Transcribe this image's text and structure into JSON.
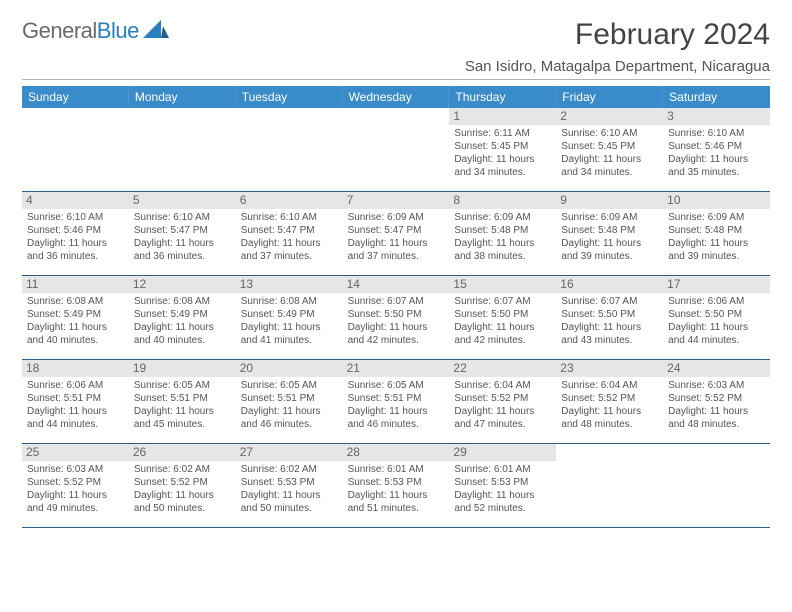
{
  "logo": {
    "general": "General",
    "blue": "Blue"
  },
  "title": "February 2024",
  "location": "San Isidro, Matagalpa Department, Nicaragua",
  "colors": {
    "header_bar": "#3a8bc9",
    "header_text": "#ffffff",
    "day_bg": "#e6e6e6",
    "rule": "#2f5e85",
    "body_text": "#555555"
  },
  "day_names": [
    "Sunday",
    "Monday",
    "Tuesday",
    "Wednesday",
    "Thursday",
    "Friday",
    "Saturday"
  ],
  "leading_blank": 4,
  "days": [
    {
      "n": "1",
      "sr": "6:11 AM",
      "ss": "5:45 PM",
      "dl": "11 hours and 34 minutes."
    },
    {
      "n": "2",
      "sr": "6:10 AM",
      "ss": "5:45 PM",
      "dl": "11 hours and 34 minutes."
    },
    {
      "n": "3",
      "sr": "6:10 AM",
      "ss": "5:46 PM",
      "dl": "11 hours and 35 minutes."
    },
    {
      "n": "4",
      "sr": "6:10 AM",
      "ss": "5:46 PM",
      "dl": "11 hours and 36 minutes."
    },
    {
      "n": "5",
      "sr": "6:10 AM",
      "ss": "5:47 PM",
      "dl": "11 hours and 36 minutes."
    },
    {
      "n": "6",
      "sr": "6:10 AM",
      "ss": "5:47 PM",
      "dl": "11 hours and 37 minutes."
    },
    {
      "n": "7",
      "sr": "6:09 AM",
      "ss": "5:47 PM",
      "dl": "11 hours and 37 minutes."
    },
    {
      "n": "8",
      "sr": "6:09 AM",
      "ss": "5:48 PM",
      "dl": "11 hours and 38 minutes."
    },
    {
      "n": "9",
      "sr": "6:09 AM",
      "ss": "5:48 PM",
      "dl": "11 hours and 39 minutes."
    },
    {
      "n": "10",
      "sr": "6:09 AM",
      "ss": "5:48 PM",
      "dl": "11 hours and 39 minutes."
    },
    {
      "n": "11",
      "sr": "6:08 AM",
      "ss": "5:49 PM",
      "dl": "11 hours and 40 minutes."
    },
    {
      "n": "12",
      "sr": "6:08 AM",
      "ss": "5:49 PM",
      "dl": "11 hours and 40 minutes."
    },
    {
      "n": "13",
      "sr": "6:08 AM",
      "ss": "5:49 PM",
      "dl": "11 hours and 41 minutes."
    },
    {
      "n": "14",
      "sr": "6:07 AM",
      "ss": "5:50 PM",
      "dl": "11 hours and 42 minutes."
    },
    {
      "n": "15",
      "sr": "6:07 AM",
      "ss": "5:50 PM",
      "dl": "11 hours and 42 minutes."
    },
    {
      "n": "16",
      "sr": "6:07 AM",
      "ss": "5:50 PM",
      "dl": "11 hours and 43 minutes."
    },
    {
      "n": "17",
      "sr": "6:06 AM",
      "ss": "5:50 PM",
      "dl": "11 hours and 44 minutes."
    },
    {
      "n": "18",
      "sr": "6:06 AM",
      "ss": "5:51 PM",
      "dl": "11 hours and 44 minutes."
    },
    {
      "n": "19",
      "sr": "6:05 AM",
      "ss": "5:51 PM",
      "dl": "11 hours and 45 minutes."
    },
    {
      "n": "20",
      "sr": "6:05 AM",
      "ss": "5:51 PM",
      "dl": "11 hours and 46 minutes."
    },
    {
      "n": "21",
      "sr": "6:05 AM",
      "ss": "5:51 PM",
      "dl": "11 hours and 46 minutes."
    },
    {
      "n": "22",
      "sr": "6:04 AM",
      "ss": "5:52 PM",
      "dl": "11 hours and 47 minutes."
    },
    {
      "n": "23",
      "sr": "6:04 AM",
      "ss": "5:52 PM",
      "dl": "11 hours and 48 minutes."
    },
    {
      "n": "24",
      "sr": "6:03 AM",
      "ss": "5:52 PM",
      "dl": "11 hours and 48 minutes."
    },
    {
      "n": "25",
      "sr": "6:03 AM",
      "ss": "5:52 PM",
      "dl": "11 hours and 49 minutes."
    },
    {
      "n": "26",
      "sr": "6:02 AM",
      "ss": "5:52 PM",
      "dl": "11 hours and 50 minutes."
    },
    {
      "n": "27",
      "sr": "6:02 AM",
      "ss": "5:53 PM",
      "dl": "11 hours and 50 minutes."
    },
    {
      "n": "28",
      "sr": "6:01 AM",
      "ss": "5:53 PM",
      "dl": "11 hours and 51 minutes."
    },
    {
      "n": "29",
      "sr": "6:01 AM",
      "ss": "5:53 PM",
      "dl": "11 hours and 52 minutes."
    }
  ],
  "labels": {
    "sunrise": "Sunrise: ",
    "sunset": "Sunset: ",
    "daylight": "Daylight: "
  }
}
